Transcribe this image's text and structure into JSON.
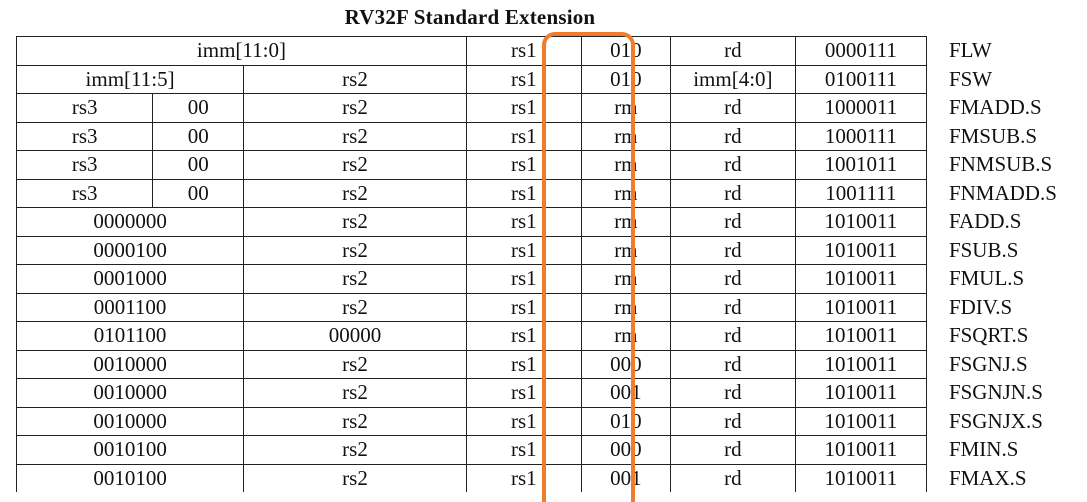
{
  "title": "RV32F Standard Extension",
  "highlight_color": "#f07d2b",
  "rows": [
    {
      "c0": "imm[11:0]",
      "c3": "rs1",
      "c4": "010",
      "c5": "rd",
      "c6": "0000111",
      "name": "FLW"
    },
    {
      "c0": "imm[11:5]",
      "c2": "rs2",
      "c3": "rs1",
      "c4": "010",
      "c5": "imm[4:0]",
      "c6": "0100111",
      "name": "FSW"
    },
    {
      "c0": "rs3",
      "c1": "00",
      "c2": "rs2",
      "c3": "rs1",
      "c4": "rm",
      "c5": "rd",
      "c6": "1000011",
      "name": "FMADD.S"
    },
    {
      "c0": "rs3",
      "c1": "00",
      "c2": "rs2",
      "c3": "rs1",
      "c4": "rm",
      "c5": "rd",
      "c6": "1000111",
      "name": "FMSUB.S"
    },
    {
      "c0": "rs3",
      "c1": "00",
      "c2": "rs2",
      "c3": "rs1",
      "c4": "rm",
      "c5": "rd",
      "c6": "1001011",
      "name": "FNMSUB.S"
    },
    {
      "c0": "rs3",
      "c1": "00",
      "c2": "rs2",
      "c3": "rs1",
      "c4": "rm",
      "c5": "rd",
      "c6": "1001111",
      "name": "FNMADD.S"
    },
    {
      "c0": "0000000",
      "c2": "rs2",
      "c3": "rs1",
      "c4": "rm",
      "c5": "rd",
      "c6": "1010011",
      "name": "FADD.S"
    },
    {
      "c0": "0000100",
      "c2": "rs2",
      "c3": "rs1",
      "c4": "rm",
      "c5": "rd",
      "c6": "1010011",
      "name": "FSUB.S"
    },
    {
      "c0": "0001000",
      "c2": "rs2",
      "c3": "rs1",
      "c4": "rm",
      "c5": "rd",
      "c6": "1010011",
      "name": "FMUL.S"
    },
    {
      "c0": "0001100",
      "c2": "rs2",
      "c3": "rs1",
      "c4": "rm",
      "c5": "rd",
      "c6": "1010011",
      "name": "FDIV.S"
    },
    {
      "c0": "0101100",
      "c2": "00000",
      "c3": "rs1",
      "c4": "rm",
      "c5": "rd",
      "c6": "1010011",
      "name": "FSQRT.S"
    },
    {
      "c0": "0010000",
      "c2": "rs2",
      "c3": "rs1",
      "c4": "000",
      "c5": "rd",
      "c6": "1010011",
      "name": "FSGNJ.S"
    },
    {
      "c0": "0010000",
      "c2": "rs2",
      "c3": "rs1",
      "c4": "001",
      "c5": "rd",
      "c6": "1010011",
      "name": "FSGNJN.S"
    },
    {
      "c0": "0010000",
      "c2": "rs2",
      "c3": "rs1",
      "c4": "010",
      "c5": "rd",
      "c6": "1010011",
      "name": "FSGNJX.S"
    },
    {
      "c0": "0010100",
      "c2": "rs2",
      "c3": "rs1",
      "c4": "000",
      "c5": "rd",
      "c6": "1010011",
      "name": "FMIN.S"
    },
    {
      "c0": "0010100",
      "c2": "rs2",
      "c3": "rs1",
      "c4": "001",
      "c5": "rd",
      "c6": "1010011",
      "name": "FMAX.S"
    }
  ]
}
